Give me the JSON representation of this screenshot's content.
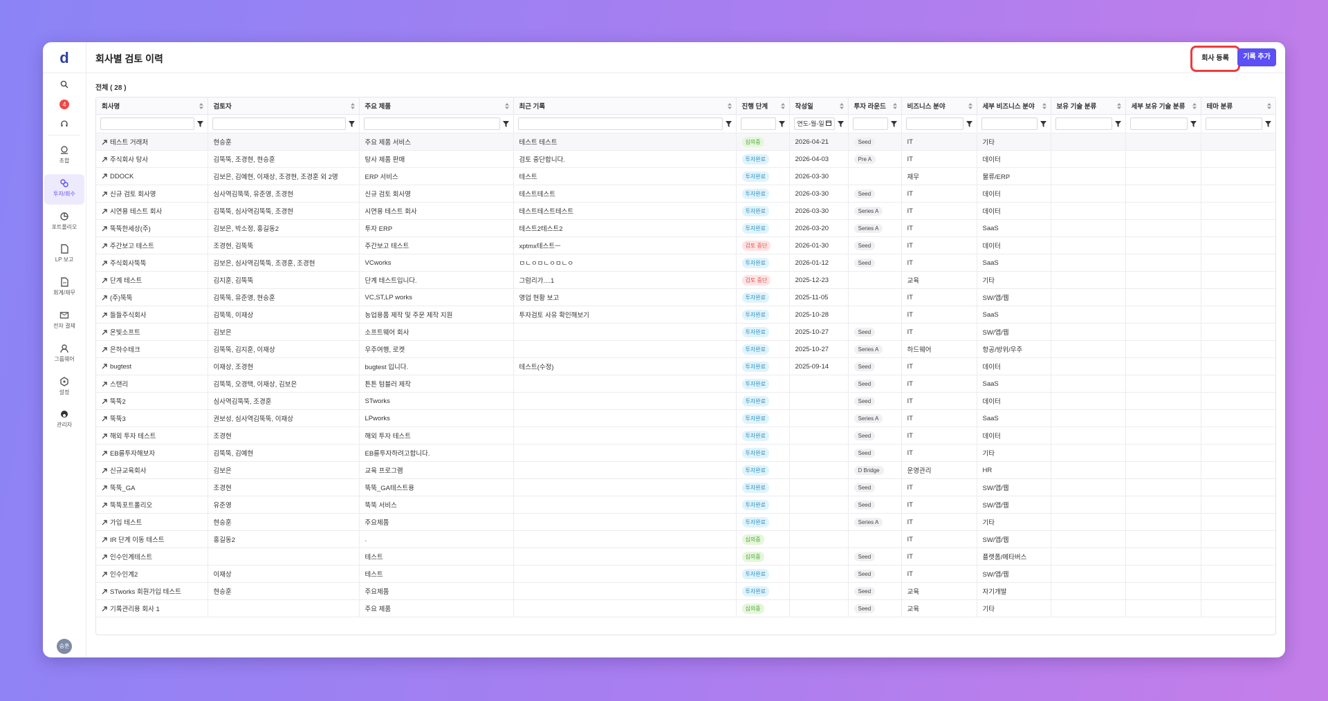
{
  "sidebar": {
    "logo": "d",
    "badge": 4,
    "items": [
      "조합",
      "투자/회수",
      "포트폴리오",
      "LP 보고",
      "회계/재무",
      "전자 결재",
      "그룹웨어",
      "설정",
      "관리자"
    ],
    "active": 1,
    "avatar": "승훈"
  },
  "header": {
    "title": "회사별 검토 이력",
    "buttons": [
      "회사 등록",
      "기록 추가"
    ]
  },
  "table": {
    "total": "전체 ( 28 )",
    "date_placeholder": "연도-월-일",
    "columns": [
      "회사명",
      "검토자",
      "주요 제품",
      "최근 기록",
      "진행 단계",
      "작성일",
      "투자 라운드",
      "비즈니스 분야",
      "세부 비즈니스 분야",
      "보유 기술 분류",
      "세부 보유 기술 분류",
      "테마 분류"
    ],
    "rows": [
      [
        "테스트 거래처",
        "현승훈",
        "주요 제품 서비스",
        "테스트 테스트",
        "심의중",
        "2026-04-21",
        "Seed",
        "IT",
        "기타"
      ],
      [
        "주식회사 탕사",
        "김뚝뚝, 조경현, 현승훈",
        "탕사 제품 판매",
        "검토 중단합니다.",
        "투자완료",
        "2026-04-03",
        "Pre A",
        "IT",
        "데이터"
      ],
      [
        "DDOCK",
        "김보은, 김예현, 이재상, 조경현, 조경훈 외 2명",
        "ERP 서비스",
        "테스트",
        "투자완료",
        "2026-03-30",
        null,
        "재무",
        "물류/ERP"
      ],
      [
        "신규 검토 회사명",
        "심사역김뚝뚝, 유준영, 조경현",
        "신규 검토 회사명",
        "테스트테스트",
        "투자완료",
        "2026-03-30",
        "Seed",
        "IT",
        "데이터"
      ],
      [
        "시연용 테스트 회사",
        "김뚝뚝, 심사역김뚝뚝, 조경현",
        "시연용 테스트 회사",
        "테스트테스트테스트",
        "투자완료",
        "2026-03-30",
        "Series A",
        "IT",
        "데이터"
      ],
      [
        "뚝뚝한세상(주)",
        "김보은, 박소정, 홍길동2",
        "투자 ERP",
        "테스트2테스트2",
        "투자완료",
        "2026-03-20",
        "Series A",
        "IT",
        "SaaS"
      ],
      [
        "주간보고 테스트",
        "조경현, 김뚝뚝",
        "주간보고 테스트",
        "xptmx테스트ㅡ",
        "검토 중단",
        "2026-01-30",
        "Seed",
        "IT",
        "데이터"
      ],
      [
        "주식회사뚝뚝",
        "김보은, 심사역김뚝뚝, 조경훈, 조경현",
        "VCworks",
        "ㅁㄴㅇㅁㄴㅇㅁㄴㅇ",
        "투자완료",
        "2026-01-12",
        "Seed",
        "IT",
        "SaaS"
      ],
      [
        "단계 테스트",
        "김지훈, 김뚝뚝",
        "단계 테스트입니다.",
        "그럼리가....1",
        "검토 중단",
        "2025-12-23",
        null,
        "교육",
        "기타"
      ],
      [
        "(주)뚝뚝",
        "김뚝뚝, 유준영, 현승훈",
        "VC,ST,LP works",
        "영업 현황 보고",
        "투자완료",
        "2025-11-05",
        null,
        "IT",
        "SW/앱/웹"
      ],
      [
        "들들주식회사",
        "김뚝뚝, 이재상",
        "농업용품 제작 및 주문 제작 지원",
        "투자검토 사유 확인해보기",
        "투자완료",
        "2025-10-28",
        null,
        "IT",
        "SaaS"
      ],
      [
        "온빛소프트",
        "김보은",
        "소프트웨어 회사",
        null,
        "투자완료",
        "2025-10-27",
        "Seed",
        "IT",
        "SW/앱/웹"
      ],
      [
        "은하수테크",
        "김뚝뚝, 김지훈, 이재상",
        "우주여행, 로켓",
        null,
        "투자완료",
        "2025-10-27",
        "Series A",
        "하드웨어",
        "항공/방위/우주"
      ],
      [
        "bugtest",
        "이재상, 조경현",
        "bugtest 입니다.",
        "테스트(수정)",
        "투자완료",
        "2025-09-14",
        "Seed",
        "IT",
        "데이터"
      ],
      [
        "스탠리",
        "김뚝뚝, 오경택, 이재상, 김보은",
        "튼튼 텀블러 제작",
        null,
        "투자완료",
        null,
        "Seed",
        "IT",
        "SaaS"
      ],
      [
        "뚝뚝2",
        "심사역김뚝뚝, 조경훈",
        "STworks",
        null,
        "투자완료",
        null,
        "Seed",
        "IT",
        "데이터"
      ],
      [
        "뚝뚝3",
        "권보성, 심사역김뚝뚝, 이재상",
        "LPworks",
        null,
        "투자완료",
        null,
        "Series A",
        "IT",
        "SaaS"
      ],
      [
        "해외 투자 테스트",
        "조경현",
        "해외 투자 테스트",
        null,
        "투자완료",
        null,
        "Seed",
        "IT",
        "데이터"
      ],
      [
        "EB를투자해보자",
        "김뚝뚝, 김예현",
        "EB를투자하려고합니다.",
        null,
        "투자완료",
        null,
        "Seed",
        "IT",
        "기타"
      ],
      [
        "신규교육회사",
        "김보은",
        "교육 프로그램",
        null,
        "투자완료",
        null,
        "D Bridge",
        "운영관리",
        "HR"
      ],
      [
        "뚝뚝_GA",
        "조경현",
        "뚝뚝_GA테스트용",
        null,
        "투자완료",
        null,
        "Seed",
        "IT",
        "SW/앱/웹"
      ],
      [
        "뚝뚝포트폴리오",
        "유준영",
        "뚝뚝 서비스",
        null,
        "투자완료",
        null,
        "Seed",
        "IT",
        "SW/앱/웹"
      ],
      [
        "가입 테스트",
        "현승훈",
        "주요제품",
        null,
        "투자완료",
        null,
        "Series A",
        "IT",
        "기타"
      ],
      [
        "IR 단계 이동 테스트",
        "홍길동2",
        ".",
        null,
        "심의중",
        null,
        null,
        "IT",
        "SW/앱/웹"
      ],
      [
        "인수인계테스트",
        null,
        "테스트",
        null,
        "심의중",
        null,
        "Seed",
        "IT",
        "플랫폼/메타버스"
      ],
      [
        "인수인계2",
        "이재상",
        "테스트",
        null,
        "투자완료",
        null,
        "Seed",
        "IT",
        "SW/앱/웹"
      ],
      [
        "STworks 회원가입 테스트",
        "현승훈",
        "주요제품",
        null,
        "투자완료",
        null,
        "Seed",
        "교육",
        "자기개발"
      ],
      [
        "기록관리용 회사 1",
        null,
        "주요 제품",
        null,
        "심의중",
        null,
        "Seed",
        "교육",
        "기타"
      ]
    ]
  },
  "stage_colors": {
    "투자완료": [
      "#e1f3fb",
      "#2b93c2"
    ],
    "심의중": [
      "#e6f6dc",
      "#4ea83a"
    ],
    "검토 중단": [
      "#fde4e4",
      "#e05252"
    ]
  }
}
